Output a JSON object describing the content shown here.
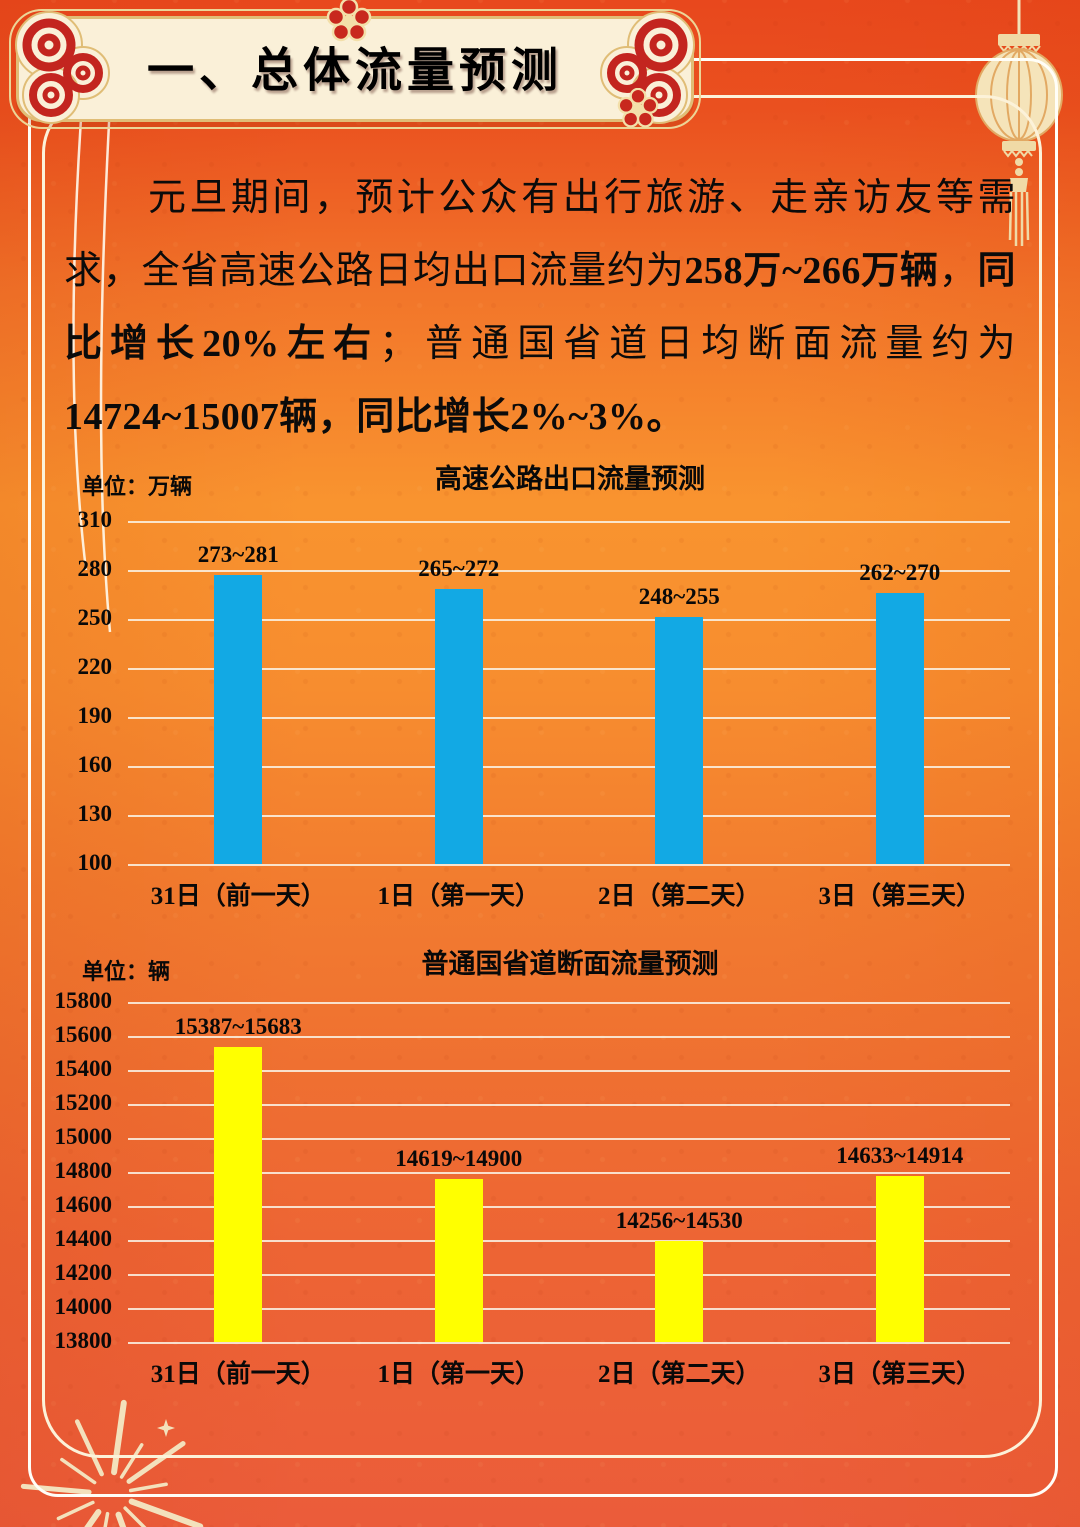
{
  "header": {
    "title": "一、总体流量预测"
  },
  "intro": {
    "seg1": "元旦期间，预计公众有出行旅游、走亲访友等需求，全省高速公路日均出口流量约为",
    "seg2": "258万~266万辆",
    "seg3": "，",
    "seg4": "同比增长20%左右",
    "seg5": "；普通国省道日均断面流量约为",
    "seg6": "14724~15007辆，同比增长2%~3%。"
  },
  "chart_data": [
    {
      "type": "bar",
      "title": "高速公路出口流量预测",
      "unit_label": "单位：万辆",
      "categories": [
        "31日（前一天）",
        "1日（第一天）",
        "2日（第二天）",
        "3日（第三天）"
      ],
      "labels": [
        "273~281",
        "265~272",
        "248~255",
        "262~270"
      ],
      "values": [
        277,
        268.5,
        251.5,
        266
      ],
      "ylim": [
        100,
        310
      ],
      "yticks": [
        310,
        280,
        250,
        220,
        190,
        160,
        130,
        100
      ],
      "bar_color": "#12A9E4",
      "grid": true,
      "legend": "none"
    },
    {
      "type": "bar",
      "title": "普通国省道断面流量预测",
      "unit_label": "单位：辆",
      "categories": [
        "31日（前一天）",
        "1日（第一天）",
        "2日（第二天）",
        "3日（第三天）"
      ],
      "labels": [
        "15387~15683",
        "14619~14900",
        "14256~14530",
        "14633~14914"
      ],
      "values": [
        15535,
        14760,
        14393,
        14774
      ],
      "ylim": [
        13800,
        15800
      ],
      "yticks": [
        15800,
        15600,
        15400,
        15200,
        15000,
        14800,
        14600,
        14400,
        14200,
        14000,
        13800
      ],
      "bar_color": "#FFFF00",
      "grid": true,
      "legend": "none"
    }
  ],
  "colors": {
    "bg_top": "#E8481D",
    "bg_mid": "#F9942F",
    "bg_bottom": "#EB5C3A",
    "banner_fill": "#FAF0D8",
    "banner_border": "#E0BD76",
    "cloud_red": "#C3251F",
    "frame_white": "#FFFEF8",
    "gridline": "#FAF4E8",
    "bar_blue": "#12A9E4",
    "bar_yellow": "#FFFF00",
    "text": "#000000"
  }
}
